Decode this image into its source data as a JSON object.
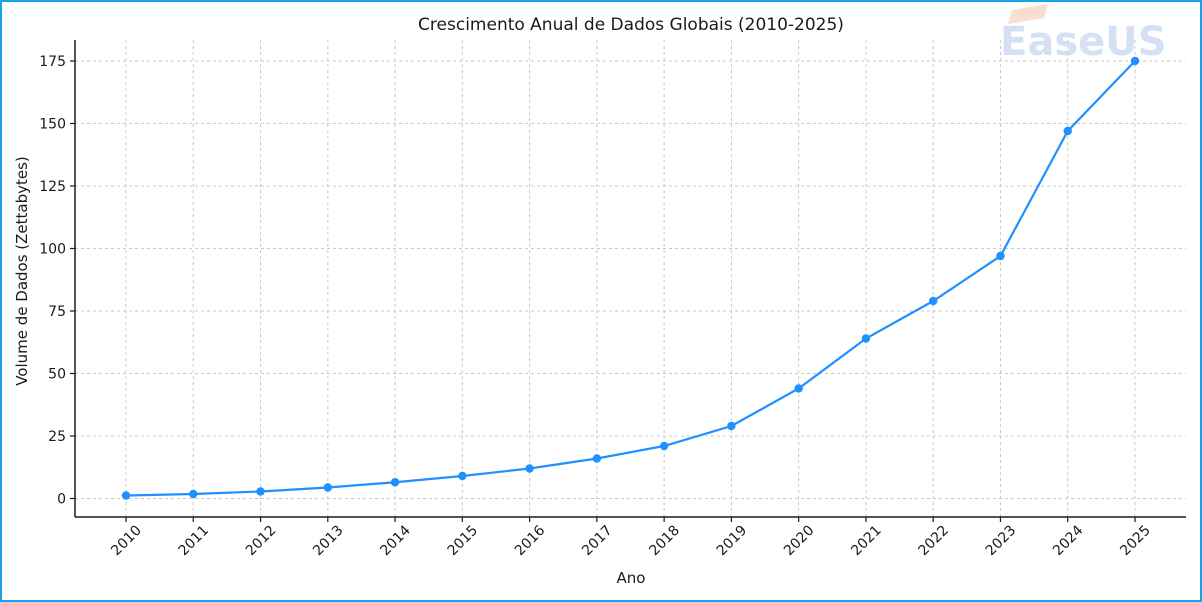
{
  "watermark": {
    "text": "EaseUS",
    "color": "#c9d6f2",
    "accent": "#f7c9b0"
  },
  "chart_data": {
    "type": "line",
    "title": "Crescimento Anual de Dados Globais (2010-2025)",
    "xlabel": "Ano",
    "ylabel": "Volume de Dados (Zettabytes)",
    "categories": [
      "2010",
      "2011",
      "2012",
      "2013",
      "2014",
      "2015",
      "2016",
      "2017",
      "2018",
      "2019",
      "2020",
      "2021",
      "2022",
      "2023",
      "2024",
      "2025"
    ],
    "series": [
      {
        "name": "Volume de Dados (Zettabytes)",
        "color": "#1e90ff",
        "values": [
          1.2,
          1.8,
          2.8,
          4.4,
          6.5,
          9,
          12,
          16,
          21,
          29,
          44,
          64,
          79,
          97,
          147,
          175
        ]
      }
    ],
    "ylim": [
      -7,
      183
    ],
    "yticks": [
      0,
      25,
      50,
      75,
      100,
      125,
      150,
      175
    ],
    "grid": true,
    "grid_style": "dashed",
    "legend": "none",
    "markers": "circle",
    "xtick_rotation": 45
  }
}
